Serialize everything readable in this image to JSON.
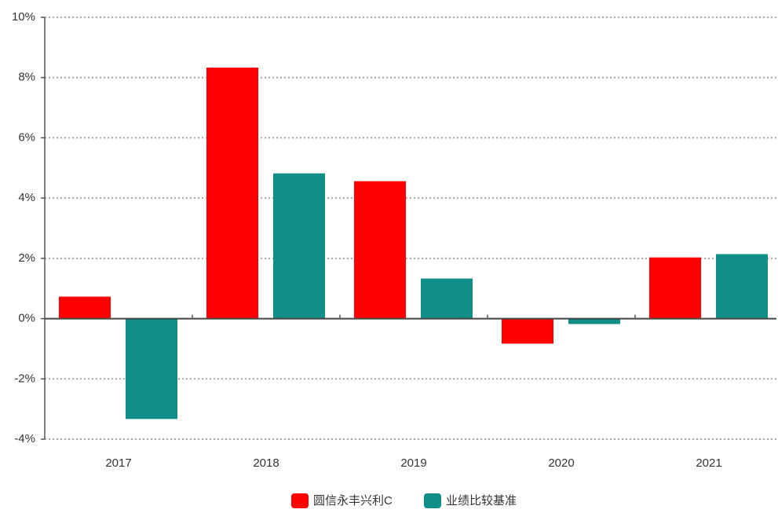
{
  "chart_data": {
    "type": "bar",
    "categories": [
      "2017",
      "2018",
      "2019",
      "2020",
      "2021"
    ],
    "series": [
      {
        "name": "圆信永丰兴利C",
        "color": "#ff0000",
        "values": [
          0.73,
          8.33,
          4.56,
          -0.83,
          2.03
        ]
      },
      {
        "name": "业绩比较基准",
        "color": "#108f89",
        "values": [
          -3.33,
          4.82,
          1.33,
          -0.18,
          2.14
        ]
      }
    ],
    "ylim": [
      -4,
      10
    ],
    "ytick_values": [
      10,
      8,
      6,
      4,
      2,
      0,
      -2,
      -4
    ],
    "yticks": [
      "10%",
      "8%",
      "6%",
      "4%",
      "2%",
      "0%",
      "-2%",
      "-4%"
    ],
    "grid": true,
    "legend_position": "bottom"
  }
}
